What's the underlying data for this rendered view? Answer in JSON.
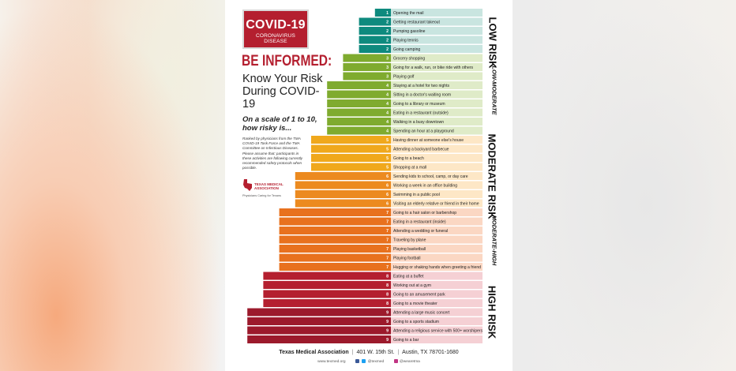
{
  "poster": {
    "logo": {
      "title": "COVID-19",
      "subtitle": "CORONAVIRUS DISEASE"
    },
    "be_informed": "BE INFORMED:",
    "headline": "Know Your Risk During COVID-19",
    "scale_text": "On a scale of 1 to 10, how risky is...",
    "fine_print_1": "Ranked by physicians from the TMA COVID-19 Task Force and the TMA Committee on Infectious Diseases.",
    "fine_print_2": "Please assume that: participants in these activities are following currently recommended safety protocols when possible.",
    "tma_logo_text": "TEXAS MEDICAL ASSOCIATION",
    "tma_tagline": "Physicians Caring for Texans",
    "risk_labels": {
      "low": "LOW RISK",
      "low_moderate": "LOW-MODERATE",
      "moderate": "MODERATE RISK",
      "moderate_high": "MODERATE-HIGH",
      "high": "HIGH RISK"
    },
    "footer": {
      "org": "Texas Medical Association",
      "address": "401 W. 15th St.",
      "city": "Austin, TX 78701-1680",
      "website": "www.texmed.org",
      "handle": "@texmed",
      "instagram": "@wearetma"
    }
  },
  "colors": {
    "low": "#0e8a7e",
    "low_moderate": "#7fab2f",
    "moderate": "#f0a81c",
    "moderate_mid": "#ec8a1f",
    "moderate_high": "#e8711e",
    "high": "#b41f2f",
    "high_max": "#9c1a2c",
    "bg_low": "#c9e5e0",
    "bg_lowmod": "#dfebc8",
    "bg_mod": "#fde7c6",
    "bg_modhigh": "#fbd7c3",
    "bg_high": "#f5d0d4"
  },
  "chart_data": {
    "type": "bar",
    "orientation": "horizontal",
    "xlim": [
      0,
      10
    ],
    "grid": false,
    "categories": [
      "Opening the mail",
      "Getting restaurant takeout",
      "Pumping gasoline",
      "Playing tennis",
      "Going camping",
      "Grocery shopping",
      "Going for a walk, run, or bike ride with others",
      "Playing golf",
      "Staying at a hotel for two nights",
      "Sitting in a doctor's waiting room",
      "Going to a library or museum",
      "Eating in a restaurant (outside)",
      "Walking in a busy downtown",
      "Spending an hour at a playground",
      "Having dinner at someone else's house",
      "Attending a backyard barbecue",
      "Going to a beach",
      "Shopping at a mall",
      "Sending kids to school, camp, or day care",
      "Working a week in an office building",
      "Swimming in a public pool",
      "Visiting an elderly relative or friend in their home",
      "Going to a hair salon or barbershop",
      "Eating in a restaurant (inside)",
      "Attending a wedding or funeral",
      "Traveling by plane",
      "Playing basketball",
      "Playing football",
      "Hugging or shaking hands when greeting a friend",
      "Eating at a buffet",
      "Working out at a gym",
      "Going to an amusement park",
      "Going to a movie theater",
      "Attending a large music concert",
      "Going to a sports stadium",
      "Attending a religious service with 500+ worshipers",
      "Going to a bar"
    ],
    "values": [
      1,
      2,
      2,
      2,
      2,
      3,
      3,
      3,
      4,
      4,
      4,
      4,
      4,
      4,
      5,
      5,
      5,
      5,
      6,
      6,
      6,
      6,
      7,
      7,
      7,
      7,
      7,
      7,
      7,
      8,
      8,
      8,
      8,
      9,
      9,
      9,
      9
    ]
  }
}
